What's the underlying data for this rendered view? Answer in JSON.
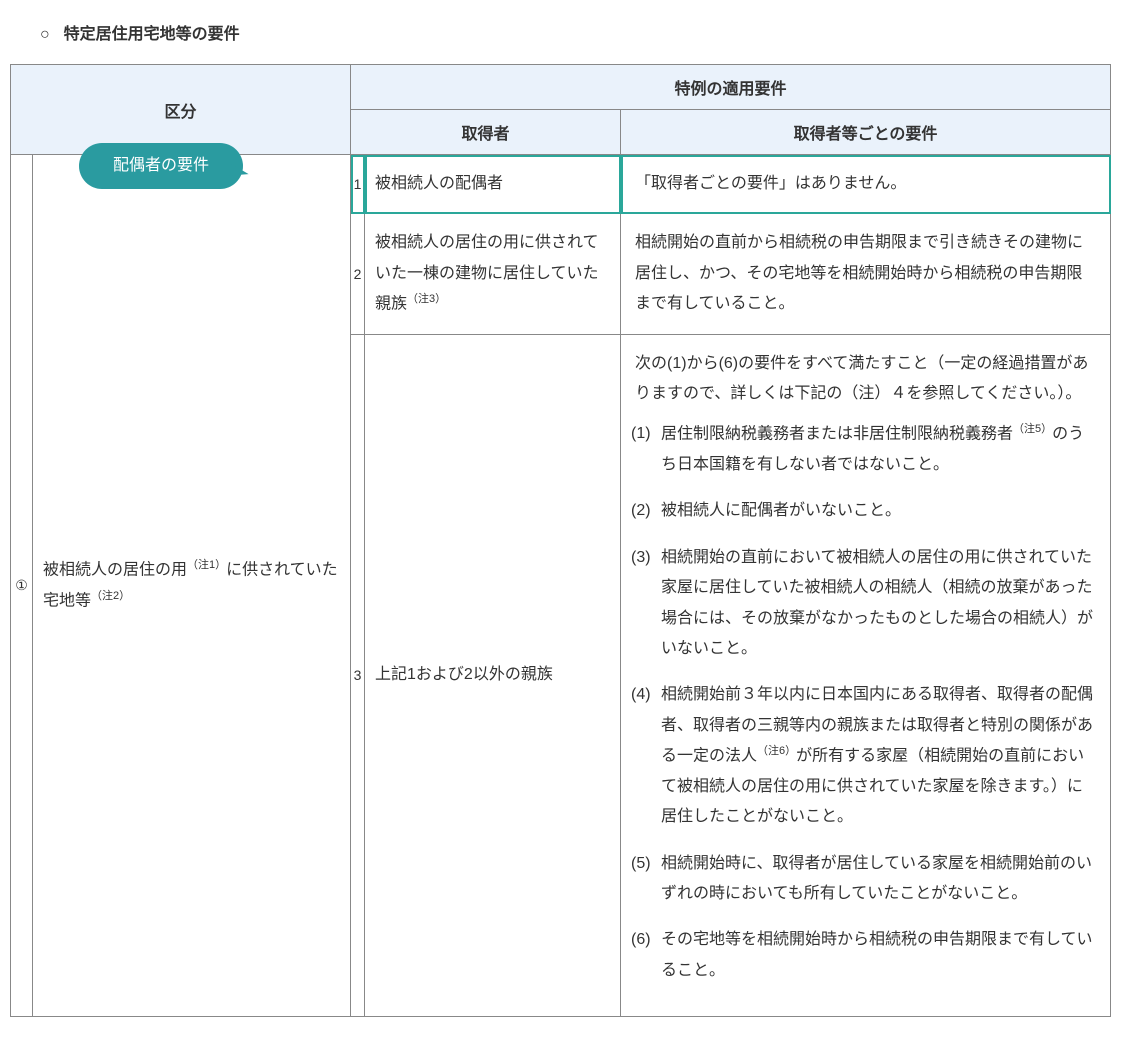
{
  "title_prefix": "○",
  "title": "特定居住用宅地等の要件",
  "headers": {
    "kubun": "区分",
    "tokure": "特例の適用要件",
    "acquirer": "取得者",
    "per_acquirer": "取得者等ごとの要件"
  },
  "callout": "配偶者の要件",
  "col_num": "①",
  "kubun_before": "被相続人の居住の用",
  "kubun_note1": "（注1）",
  "kubun_mid": "に供されていた宅地等",
  "kubun_note2": "（注2）",
  "rows": {
    "1": {
      "n": "1",
      "acq": "被相続人の配偶者",
      "req": "「取得者ごとの要件」はありません。"
    },
    "2": {
      "n": "2",
      "acq_before": "被相続人の居住の用に供されていた一棟の建物に居住していた親族",
      "acq_note": "（注3）",
      "req": "相続開始の直前から相続税の申告期限まで引き続きその建物に居住し、かつ、その宅地等を相続開始時から相続税の申告期限まで有していること。"
    },
    "3": {
      "n": "3",
      "acq": "上記1および2以外の親族",
      "req_intro": "次の(1)から(6)の要件をすべて満たすこと（一定の経過措置がありますので、詳しくは下記の（注）４を参照してください。）。",
      "items": {
        "1": {
          "idx": "(1)",
          "before": "居住制限納税義務者または非居住制限納税義務者",
          "note": "（注5）",
          "after": "のうち日本国籍を有しない者ではないこと。"
        },
        "2": {
          "idx": "(2)",
          "text": "被相続人に配偶者がいないこと。"
        },
        "3": {
          "idx": "(3)",
          "text": "相続開始の直前において被相続人の居住の用に供されていた家屋に居住していた被相続人の相続人（相続の放棄があった場合には、その放棄がなかったものとした場合の相続人）がいないこと。"
        },
        "4": {
          "idx": "(4)",
          "before": "相続開始前３年以内に日本国内にある取得者、取得者の配偶者、取得者の三親等内の親族または取得者と特別の関係がある一定の法人",
          "note": "（注6）",
          "after": "が所有する家屋（相続開始の直前において被相続人の居住の用に供されていた家屋を除きます。）に居住したことがないこと。"
        },
        "5": {
          "idx": "(5)",
          "text": "相続開始時に、取得者が居住している家屋を相続開始前のいずれの時においても所有していたことがないこと。"
        },
        "6": {
          "idx": "(6)",
          "text": "その宅地等を相続開始時から相続税の申告期限まで有していること。"
        }
      }
    }
  },
  "colors": {
    "header_bg": "#eaf2fb",
    "border": "#888888",
    "callout_bg": "#2a9ba0",
    "highlight_border": "#2aa79a"
  }
}
